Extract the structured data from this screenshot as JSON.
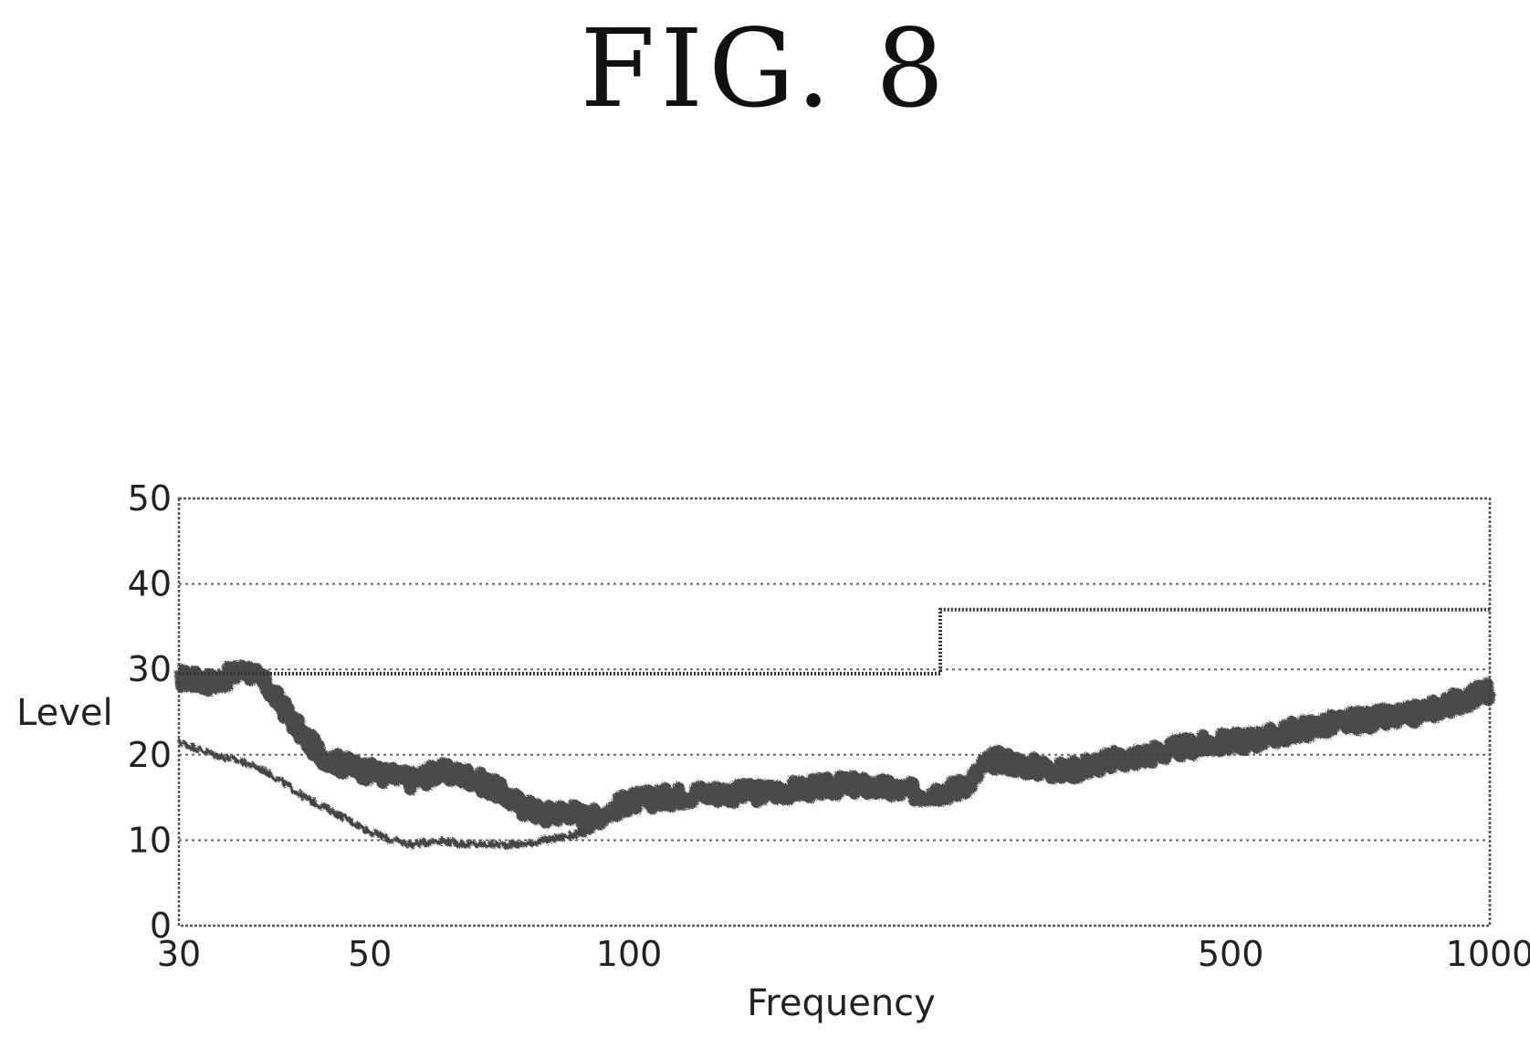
{
  "figure": {
    "title": "FIG. 8"
  },
  "chart_data": {
    "type": "line",
    "title": "",
    "xlabel": "Frequency",
    "ylabel": "Level",
    "x_scale": "log",
    "xlim": [
      30,
      1000
    ],
    "ylim": [
      0,
      50
    ],
    "x_ticks": [
      30,
      50,
      100,
      500,
      1000
    ],
    "y_ticks": [
      0,
      10,
      20,
      30,
      40,
      50
    ],
    "grid": {
      "horizontal": [
        10,
        20,
        30,
        40
      ],
      "vertical": false,
      "style": "dotted"
    },
    "series": [
      {
        "style": "thick-noisy",
        "x": [
          30,
          33,
          36,
          38,
          40,
          42,
          44,
          46,
          48,
          50,
          53,
          56,
          60,
          65,
          70,
          75,
          80,
          85,
          90,
          95,
          100,
          110,
          120,
          140,
          160,
          180,
          200,
          220,
          240,
          250,
          260,
          270,
          280,
          300,
          320,
          350,
          400,
          450,
          500,
          550,
          600,
          700,
          800,
          900,
          1000
        ],
        "y": [
          29,
          28.5,
          30,
          28,
          25,
          22,
          20,
          19,
          18.5,
          18,
          17.5,
          17,
          18,
          17.5,
          16,
          14,
          13,
          13.5,
          12.5,
          13.5,
          14.5,
          15,
          15.5,
          15.5,
          16,
          16.5,
          16,
          15.5,
          16,
          17,
          19,
          19.5,
          19,
          18.5,
          18,
          19,
          20,
          21,
          21.5,
          22,
          23,
          24,
          24.5,
          26,
          27.5
        ]
      },
      {
        "style": "thin",
        "x": [
          30,
          33,
          36,
          38,
          40,
          42,
          45,
          48,
          50,
          53,
          56,
          60,
          65,
          70,
          75,
          80,
          85,
          90
        ],
        "y": [
          21.5,
          20,
          19,
          18,
          16.5,
          15,
          13.5,
          12,
          11,
          10,
          9.5,
          10,
          9.5,
          9.5,
          9.5,
          10,
          10.5,
          11
        ]
      },
      {
        "style": "step-limit",
        "x": [
          30,
          230,
          230,
          1000
        ],
        "y": [
          29.5,
          29.5,
          37,
          37
        ]
      }
    ]
  }
}
